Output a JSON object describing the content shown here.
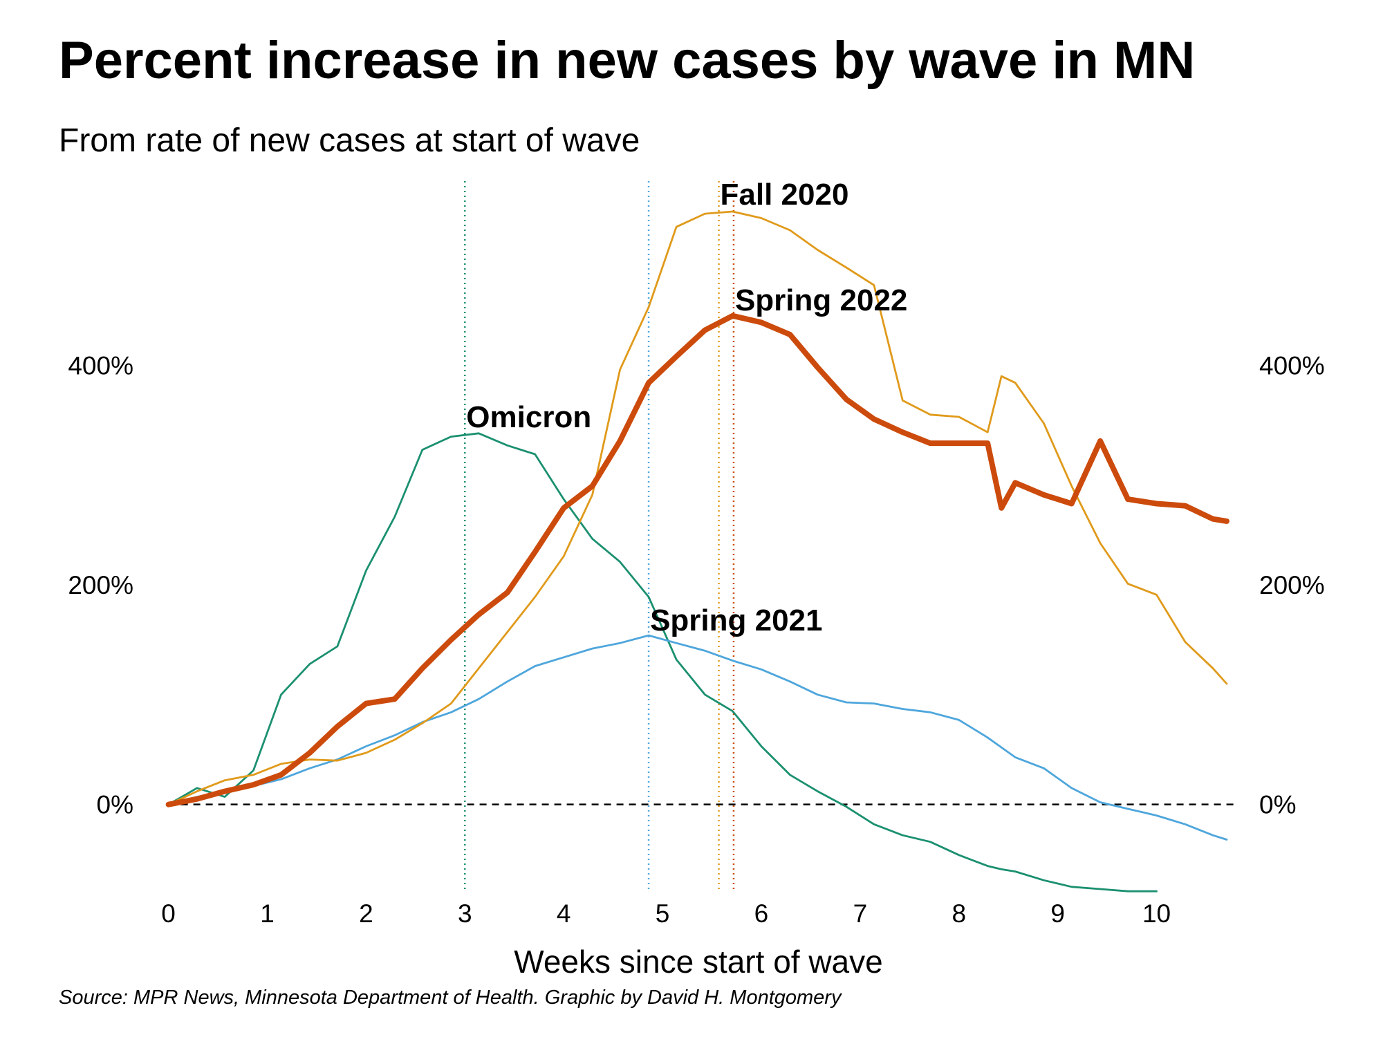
{
  "chart_data": {
    "type": "line",
    "title": "Percent increase in new cases by wave in MN",
    "subtitle": "From rate of new cases at start of wave",
    "x_label": "Weeks since start of wave",
    "source": "Source: MPR News, Minnesota Department of Health. Graphic by David H. Montgomery",
    "x": [
      0,
      0.29,
      0.57,
      0.86,
      1.14,
      1.43,
      1.71,
      2,
      2.29,
      2.57,
      2.86,
      3.14,
      3.43,
      3.71,
      4,
      4.29,
      4.57,
      4.86,
      5.14,
      5.43,
      5.71,
      6,
      6.29,
      6.57,
      6.86,
      7.14,
      7.43,
      7.71,
      8,
      8.29,
      8.43,
      8.57,
      8.86,
      9.14,
      9.43,
      9.71,
      10,
      10.29,
      10.57,
      10.71
    ],
    "series": [
      {
        "name": "Omicron",
        "color": "#1b9070",
        "peak": 3,
        "values": [
          0,
          15,
          7,
          31,
          100,
          128,
          144,
          213,
          262,
          323,
          335,
          338,
          327,
          319,
          278,
          242,
          221,
          189,
          132,
          100,
          85,
          53,
          27,
          12,
          -2,
          -18,
          -28,
          -34,
          -46,
          -56,
          -59,
          -61,
          -69,
          -75,
          -77,
          -79,
          -79,
          null,
          null,
          null
        ]
      },
      {
        "name": "Spring 2021",
        "color": "#4ea6dc",
        "peak": 4.86,
        "values": [
          0,
          7,
          12,
          17,
          23,
          33,
          41,
          53,
          63,
          75,
          84,
          96,
          112,
          126,
          134,
          142,
          147,
          154,
          147,
          140,
          131,
          123,
          112,
          100,
          93,
          92,
          87,
          84,
          77,
          61,
          52,
          43,
          33,
          15,
          2,
          -4,
          -10,
          -18,
          -28,
          -32
        ]
      },
      {
        "name": "Fall 2020",
        "color": "#e09a1b",
        "peak": 5.57,
        "values": [
          0,
          12,
          22,
          27,
          37,
          41,
          40,
          47,
          59,
          74,
          92,
          124,
          157,
          189,
          226,
          282,
          396,
          453,
          526,
          538,
          540,
          534,
          523,
          505,
          489,
          473,
          368,
          355,
          353,
          339,
          390,
          384,
          347,
          290,
          238,
          201,
          191,
          148,
          124,
          110
        ]
      },
      {
        "name": "Spring 2022",
        "color": "#cc4b0c",
        "peak": 5.72,
        "highlight": true,
        "values": [
          0,
          5,
          12,
          18,
          27,
          47,
          71,
          92,
          96,
          124,
          150,
          173,
          193,
          230,
          270,
          290,
          331,
          384,
          408,
          432,
          445,
          439,
          428,
          398,
          369,
          351,
          339,
          329,
          329,
          329,
          270,
          293,
          282,
          274,
          331,
          278,
          274,
          272,
          260,
          258
        ]
      }
    ],
    "xlim": [
      0,
      10.71
    ],
    "xticks": [
      0,
      1,
      2,
      3,
      4,
      5,
      6,
      7,
      8,
      9,
      10
    ],
    "ylim": [
      -85,
      570
    ],
    "yticks": [
      {
        "value": 0,
        "label": "0%"
      },
      {
        "value": 200,
        "label": "200%"
      },
      {
        "value": 400,
        "label": "400%"
      }
    ],
    "grid": false
  }
}
